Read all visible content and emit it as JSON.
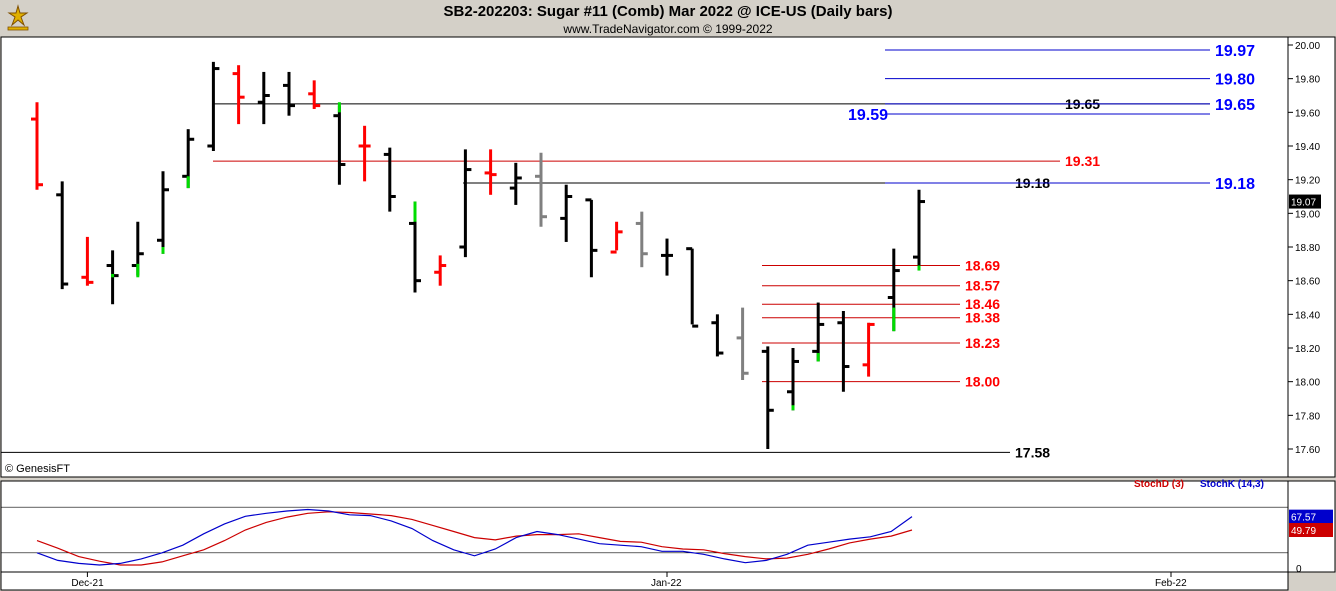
{
  "header": {
    "title": "SB2-202203:  Sugar #11 (Comb) Mar 2022 @ ICE-US  (Daily bars)",
    "subtitle": "www.TradeNavigator.com © 1999-2022",
    "logo_icon": "trade-navigator-logo-icon"
  },
  "copyright": "© GenesisFT",
  "chart_data": [
    {
      "type": "ohlc",
      "ylim": [
        17.5,
        20.05
      ],
      "yticks": [
        "17.60",
        "17.80",
        "18.00",
        "18.20",
        "18.40",
        "18.60",
        "18.80",
        "19.00",
        "19.20",
        "19.40",
        "19.60",
        "19.80",
        "20.00"
      ],
      "yticks_values": [
        17.6,
        17.8,
        18.0,
        18.2,
        18.4,
        18.6,
        18.8,
        19.0,
        19.2,
        19.4,
        19.6,
        19.8,
        20.0
      ],
      "last_price": "19.07",
      "last_price_value": 19.07,
      "xticks": [
        {
          "label": "Dec-21",
          "index": 2
        },
        {
          "label": "Jan-22",
          "index": 25
        },
        {
          "label": "Feb-22",
          "index": 45
        }
      ],
      "colors": {
        "up": "#000000",
        "down": "#ff0000",
        "neutral": "#808080",
        "highlight": "#00cc00"
      },
      "bars": [
        {
          "o": 19.56,
          "h": 19.66,
          "l": 19.14,
          "c": 19.17,
          "col": "red"
        },
        {
          "o": 19.11,
          "h": 19.19,
          "l": 18.55,
          "c": 18.58,
          "col": "black"
        },
        {
          "o": 18.62,
          "h": 18.86,
          "l": 18.57,
          "c": 18.59,
          "col": "red"
        },
        {
          "o": 18.69,
          "h": 18.78,
          "l": 18.46,
          "c": 18.63,
          "col": "black",
          "gl": [
            18.62,
            18.64
          ]
        },
        {
          "o": 18.69,
          "h": 18.95,
          "l": 18.63,
          "c": 18.76,
          "col": "black",
          "gl": [
            18.62,
            18.7
          ]
        },
        {
          "o": 18.84,
          "h": 19.25,
          "l": 18.76,
          "c": 19.14,
          "col": "black",
          "gl": [
            18.76,
            18.8
          ]
        },
        {
          "o": 19.22,
          "h": 19.5,
          "l": 19.15,
          "c": 19.44,
          "col": "black",
          "gl": [
            19.15,
            19.22
          ]
        },
        {
          "o": 19.4,
          "h": 19.9,
          "l": 19.37,
          "c": 19.86,
          "col": "black"
        },
        {
          "o": 19.83,
          "h": 19.88,
          "l": 19.53,
          "c": 19.69,
          "col": "red"
        },
        {
          "o": 19.66,
          "h": 19.84,
          "l": 19.53,
          "c": 19.7,
          "col": "black"
        },
        {
          "o": 19.76,
          "h": 19.84,
          "l": 19.58,
          "c": 19.64,
          "col": "black"
        },
        {
          "o": 19.71,
          "h": 19.79,
          "l": 19.62,
          "c": 19.64,
          "col": "red"
        },
        {
          "o": 19.58,
          "h": 19.64,
          "l": 19.17,
          "c": 19.29,
          "col": "black",
          "gl": [
            19.6,
            19.66
          ]
        },
        {
          "o": 19.4,
          "h": 19.52,
          "l": 19.19,
          "c": 19.4,
          "col": "red"
        },
        {
          "o": 19.35,
          "h": 19.39,
          "l": 19.01,
          "c": 19.1,
          "col": "black"
        },
        {
          "o": 18.94,
          "h": 19.07,
          "l": 18.53,
          "c": 18.6,
          "col": "black",
          "gl": [
            18.95,
            19.07
          ]
        },
        {
          "o": 18.65,
          "h": 18.75,
          "l": 18.57,
          "c": 18.69,
          "col": "red"
        },
        {
          "o": 18.8,
          "h": 19.38,
          "l": 18.74,
          "c": 19.26,
          "col": "black"
        },
        {
          "o": 19.24,
          "h": 19.38,
          "l": 19.11,
          "c": 19.23,
          "col": "red"
        },
        {
          "o": 19.15,
          "h": 19.3,
          "l": 19.05,
          "c": 19.21,
          "col": "black"
        },
        {
          "o": 19.22,
          "h": 19.36,
          "l": 18.92,
          "c": 18.98,
          "col": "gray"
        },
        {
          "o": 18.97,
          "h": 19.17,
          "l": 18.83,
          "c": 19.1,
          "col": "black"
        },
        {
          "o": 19.08,
          "h": 19.08,
          "l": 18.62,
          "c": 18.78,
          "col": "black"
        },
        {
          "o": 18.77,
          "h": 18.95,
          "l": 18.78,
          "c": 18.89,
          "col": "red"
        },
        {
          "o": 18.94,
          "h": 19.01,
          "l": 18.68,
          "c": 18.76,
          "col": "gray"
        },
        {
          "o": 18.75,
          "h": 18.85,
          "l": 18.63,
          "c": 18.75,
          "col": "black"
        },
        {
          "o": 18.79,
          "h": 18.79,
          "l": 18.34,
          "c": 18.33,
          "col": "black"
        },
        {
          "o": 18.35,
          "h": 18.4,
          "l": 18.15,
          "c": 18.17,
          "col": "black"
        },
        {
          "o": 18.26,
          "h": 18.44,
          "l": 18.01,
          "c": 18.05,
          "col": "gray"
        },
        {
          "o": 18.18,
          "h": 18.21,
          "l": 17.6,
          "c": 17.83,
          "col": "black"
        },
        {
          "o": 17.94,
          "h": 18.2,
          "l": 17.83,
          "c": 18.12,
          "col": "black",
          "gl": [
            17.83,
            17.86
          ]
        },
        {
          "o": 18.18,
          "h": 18.47,
          "l": 18.12,
          "c": 18.34,
          "col": "black",
          "gl": [
            18.12,
            18.17
          ]
        },
        {
          "o": 18.35,
          "h": 18.42,
          "l": 17.94,
          "c": 18.09,
          "col": "black"
        },
        {
          "o": 18.1,
          "h": 18.35,
          "l": 18.03,
          "c": 18.34,
          "col": "red"
        },
        {
          "o": 18.5,
          "h": 18.79,
          "l": 18.3,
          "c": 18.66,
          "col": "black",
          "gl": [
            18.3,
            18.44
          ]
        },
        {
          "o": 18.74,
          "h": 19.14,
          "l": 18.68,
          "c": 19.07,
          "col": "black",
          "gl": [
            18.66,
            18.69
          ]
        }
      ],
      "levels": [
        {
          "label": "19.97",
          "value": 19.97,
          "color": "#0000cc",
          "big": true
        },
        {
          "label": "19.80",
          "value": 19.8,
          "color": "#0000cc",
          "big": true
        },
        {
          "label": "19.65",
          "value": 19.65,
          "color": "#0000cc",
          "big": true
        },
        {
          "label": "19.59",
          "value": 19.59,
          "color": "#0000cc",
          "big": true,
          "left": true
        },
        {
          "label": "19.18",
          "value": 19.18,
          "color": "#0000cc",
          "big": true
        }
      ],
      "black_levels": [
        {
          "label": "19.65",
          "value": 19.65
        },
        {
          "label": "19.18",
          "value": 19.18
        },
        {
          "label": "17.58",
          "value": 17.58
        }
      ],
      "red_levels": [
        {
          "label": "19.31",
          "value": 19.31
        },
        {
          "label": "18.69",
          "value": 18.69
        },
        {
          "label": "18.57",
          "value": 18.57
        },
        {
          "label": "18.46",
          "value": 18.46
        },
        {
          "label": "18.38",
          "value": 18.38
        },
        {
          "label": "18.23",
          "value": 18.23
        },
        {
          "label": "18.00",
          "value": 18.0
        }
      ]
    },
    {
      "type": "line",
      "legend": [
        {
          "name": "StochD (3)",
          "color": "#cc0000"
        },
        {
          "name": "StochK (14,3)",
          "color": "#0000cc"
        }
      ],
      "ylim": [
        0,
        100
      ],
      "yticks": [
        "0"
      ],
      "stochD_last": "49.79",
      "stochK_last": "67.57",
      "series": [
        {
          "name": "StochD (3)",
          "color": "#cc0000",
          "values": [
            36,
            26,
            15,
            9,
            4,
            4,
            8,
            16,
            24,
            36,
            50,
            60,
            67,
            72,
            74,
            73,
            71,
            69,
            64,
            56,
            48,
            40,
            37,
            42,
            44,
            44,
            45,
            40,
            35,
            34,
            28,
            25,
            24,
            19,
            15,
            12,
            13,
            18,
            25,
            33,
            38,
            42,
            50
          ]
        },
        {
          "name": "StochK (14,3)",
          "color": "#0000cc",
          "values": [
            20,
            10,
            6,
            4,
            6,
            12,
            20,
            30,
            45,
            58,
            68,
            72,
            75,
            77,
            75,
            70,
            69,
            62,
            52,
            36,
            24,
            16,
            25,
            40,
            48,
            44,
            38,
            32,
            30,
            28,
            22,
            22,
            18,
            12,
            7,
            10,
            18,
            30,
            34,
            38,
            41,
            48,
            67.57
          ]
        }
      ]
    }
  ]
}
